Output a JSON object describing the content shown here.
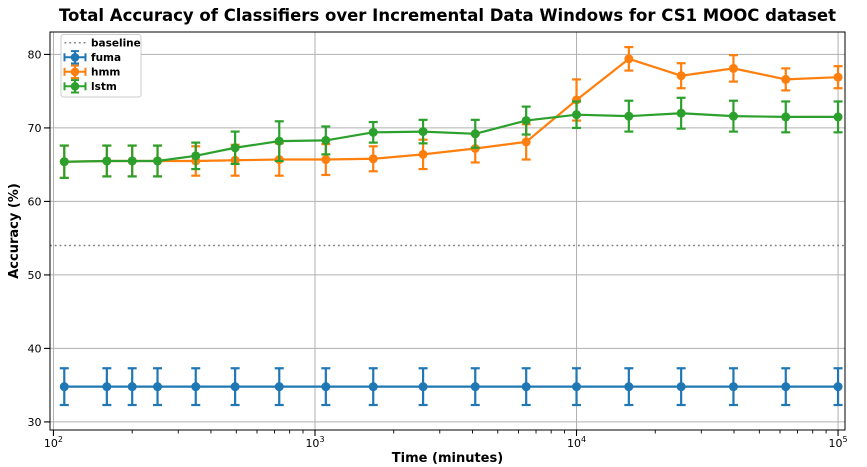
{
  "chart_data": {
    "type": "line",
    "title": "Total Accuracy of Classifiers over Incremental Data Windows for CS1 MOOC dataset",
    "xlabel": "Time (minutes)",
    "ylabel": "Accuracy (%)",
    "x_scale": "log",
    "xlim": [
      97,
      106300
    ],
    "ylim": [
      28.9,
      83.05
    ],
    "y_ticks": [
      30,
      40,
      50,
      60,
      70,
      80
    ],
    "x_ticks": [
      {
        "value": 100,
        "label": "10^2"
      },
      {
        "value": 1000,
        "label": "10^3"
      },
      {
        "value": 10000,
        "label": "10^4"
      },
      {
        "value": 100000,
        "label": "10^5"
      }
    ],
    "grid": true,
    "grid_color": "#b0b0b0",
    "legend_position": "upper left",
    "baseline": {
      "label": "baseline",
      "value": 54,
      "color": "#7f7f7f",
      "style": "dotted"
    },
    "x": [
      110,
      160,
      200,
      250,
      350,
      495,
      730,
      1100,
      1670,
      2590,
      4100,
      6420,
      10000,
      15850,
      25120,
      39810,
      63100,
      100000
    ],
    "series": [
      {
        "name": "fuma",
        "color": "#1f77b4",
        "values": [
          34.8,
          34.8,
          34.8,
          34.8,
          34.8,
          34.8,
          34.8,
          34.8,
          34.8,
          34.8,
          34.8,
          34.8,
          34.8,
          34.8,
          34.8,
          34.8,
          34.8,
          34.8
        ],
        "errors": [
          2.5,
          2.5,
          2.5,
          2.5,
          2.5,
          2.5,
          2.5,
          2.5,
          2.5,
          2.5,
          2.5,
          2.5,
          2.5,
          2.5,
          2.5,
          2.5,
          2.5,
          2.5
        ]
      },
      {
        "name": "hmm",
        "color": "#ff7f0e",
        "values": [
          65.4,
          65.5,
          65.5,
          65.5,
          65.5,
          65.6,
          65.7,
          65.7,
          65.8,
          66.4,
          67.2,
          68.1,
          73.8,
          79.4,
          77.1,
          78.1,
          76.6,
          76.9
        ],
        "errors": [
          2.2,
          2.1,
          2.1,
          2.1,
          2.0,
          2.1,
          2.2,
          2.1,
          1.7,
          2.0,
          1.9,
          2.4,
          2.8,
          1.6,
          1.7,
          1.8,
          1.5,
          1.5
        ]
      },
      {
        "name": "lstm",
        "color": "#2ca02c",
        "values": [
          65.4,
          65.5,
          65.5,
          65.5,
          66.2,
          67.3,
          68.2,
          68.3,
          69.4,
          69.5,
          69.2,
          71.0,
          71.8,
          71.6,
          72.0,
          71.6,
          71.5,
          71.5
        ],
        "errors": [
          2.2,
          2.1,
          2.1,
          2.1,
          1.8,
          2.2,
          2.7,
          1.9,
          1.4,
          1.6,
          1.9,
          1.9,
          1.8,
          2.1,
          2.1,
          2.1,
          2.1,
          2.1
        ]
      }
    ]
  }
}
